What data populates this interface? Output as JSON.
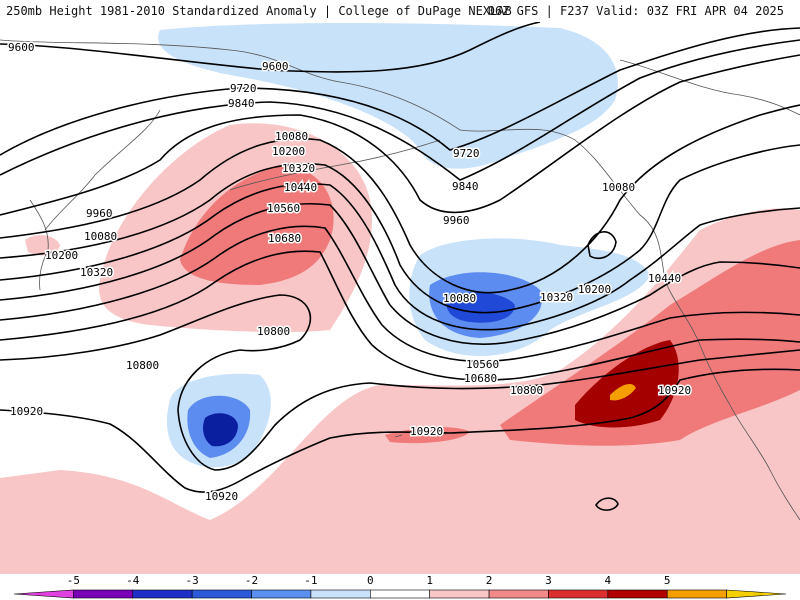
{
  "header": {
    "left_title": "250mb Height 1981-2010 Standardized Anomaly | College of DuPage NEXLAB",
    "right_title": "06Z GFS | F237 Valid: 03Z FRI APR 04 2025"
  },
  "map": {
    "contour_labels": [
      "9600",
      "9600",
      "9720",
      "9720",
      "9840",
      "9840",
      "10080",
      "10200",
      "10320",
      "10440",
      "10560",
      "10680",
      "9960",
      "10080",
      "10200",
      "10320",
      "9960",
      "10080",
      "10200",
      "10320",
      "10440",
      "10080",
      "10320",
      "10200",
      "10800",
      "10800",
      "10560",
      "10680",
      "10800",
      "10920",
      "10920",
      "10920",
      "10920"
    ],
    "colors": {
      "neg1": "#c8e2fa",
      "neg2": "#5d8cf0",
      "neg3": "#1f49d6",
      "neg4": "#0a1fa0",
      "pos1": "#f8c6c6",
      "pos2": "#f07a7a",
      "pos3": "#d22a2a",
      "pos4": "#a50000",
      "pos5": "#f59e00",
      "contour": "#000000",
      "coast": "#555555"
    }
  },
  "colorbar": {
    "ticks": [
      "-5",
      "-4",
      "-3",
      "-2",
      "-1",
      "0",
      "1",
      "2",
      "3",
      "4",
      "5"
    ],
    "colors": [
      "#e040e0",
      "#7a00b8",
      "#1f30c8",
      "#2a5ad8",
      "#5a90f0",
      "#c8e2fa",
      "#ffffff",
      "#f8c6c6",
      "#f28a8a",
      "#dc3030",
      "#b00000",
      "#f59e00",
      "#f5d000"
    ]
  }
}
